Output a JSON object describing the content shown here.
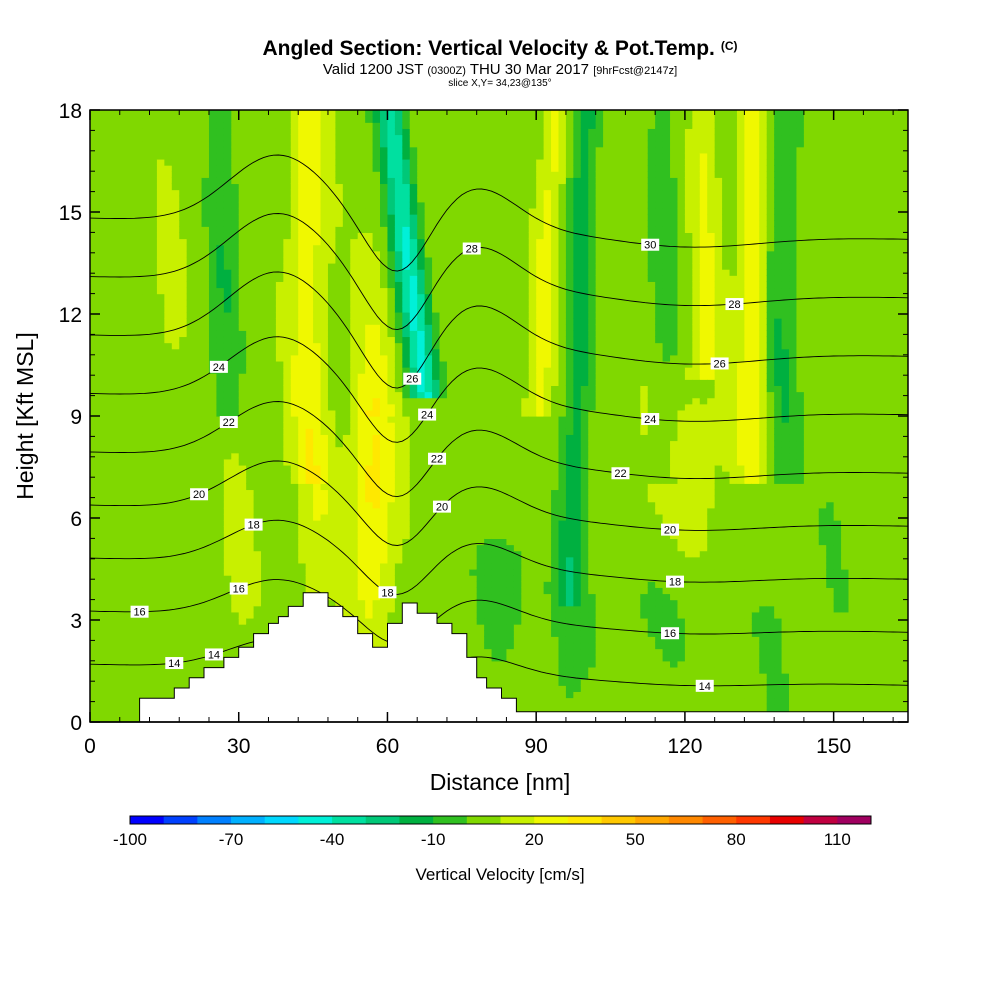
{
  "title": {
    "main": "Angled Section: Vertical Velocity & Pot.Temp.",
    "mark": "(C)",
    "valid_prefix": "Valid 1200 JST",
    "zulu": "(0300Z)",
    "valid_date": "THU 30 Mar 2017",
    "forecast": "[9hrFcst@2147z]",
    "slice": "slice X,Y= 34,23@135°"
  },
  "chart_data": {
    "type": "heatmap",
    "xlabel": "Distance [nm]",
    "ylabel": "Height [Kft MSL]",
    "xlim": [
      0,
      165
    ],
    "ylim": [
      0,
      18
    ],
    "x_ticks": [
      0,
      30,
      60,
      90,
      120,
      150
    ],
    "y_ticks": [
      0,
      3,
      6,
      9,
      12,
      15,
      18
    ],
    "colorbar": {
      "title": "Vertical Velocity [cm/s]",
      "labels": [
        -100,
        -70,
        -40,
        -10,
        20,
        50,
        80,
        110
      ],
      "min": -100,
      "max": 120,
      "step": 10,
      "colors": [
        "#0000ff",
        "#0040ff",
        "#0080ff",
        "#00b0ff",
        "#00d8ff",
        "#00f0d8",
        "#00e0a0",
        "#00c878",
        "#00b040",
        "#30c020",
        "#80d800",
        "#c8f000",
        "#f0f800",
        "#ffe800",
        "#ffc800",
        "#ffa800",
        "#ff8800",
        "#ff6000",
        "#ff3800",
        "#e80000",
        "#c00040",
        "#a00060"
      ]
    },
    "theta_contours": {
      "unit": "C",
      "levels": [
        14,
        16,
        18,
        20,
        22,
        24,
        26,
        28,
        30
      ]
    },
    "terrain": {
      "x": [
        0,
        10,
        10,
        17,
        17,
        20,
        20,
        23,
        23,
        27,
        27,
        30,
        30,
        33,
        33,
        36,
        36,
        38,
        38,
        40,
        40,
        43,
        43,
        48,
        48,
        51,
        51,
        54,
        54,
        57,
        57,
        60,
        60,
        63,
        63,
        66,
        66,
        70,
        70,
        73,
        73,
        76,
        76,
        78,
        78,
        80,
        80,
        83,
        83,
        86,
        86,
        89,
        89,
        165
      ],
      "y": [
        0,
        0,
        0.7,
        0.7,
        1.0,
        1.0,
        1.3,
        1.3,
        1.6,
        1.6,
        1.9,
        1.9,
        2.2,
        2.2,
        2.6,
        2.6,
        2.9,
        2.9,
        3.1,
        3.1,
        3.4,
        3.4,
        3.8,
        3.8,
        3.4,
        3.4,
        3.1,
        3.1,
        2.6,
        2.6,
        2.2,
        2.2,
        2.9,
        2.9,
        3.5,
        3.5,
        3.2,
        3.2,
        2.9,
        2.9,
        2.6,
        2.6,
        1.9,
        1.9,
        1.3,
        1.3,
        1.0,
        1.0,
        0.7,
        0.7,
        0.3,
        0.3,
        0.3,
        0.3
      ]
    }
  }
}
